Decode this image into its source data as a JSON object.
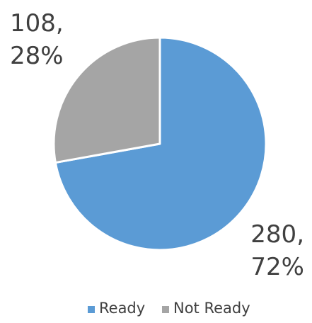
{
  "chart_data": {
    "type": "pie",
    "title": "",
    "slices": [
      {
        "label": "Ready",
        "value": 280,
        "percent": "72%",
        "color": "#5B9BD5",
        "data_label": [
          "280,",
          "72%"
        ]
      },
      {
        "label": "Not Ready",
        "value": 108,
        "percent": "28%",
        "color": "#A5A5A5",
        "data_label": [
          "108,",
          "28%"
        ]
      }
    ],
    "start_angle_deg": 0,
    "direction": "clockwise",
    "legend_position": "bottom",
    "slice_border_color": "#FFFFFF"
  }
}
